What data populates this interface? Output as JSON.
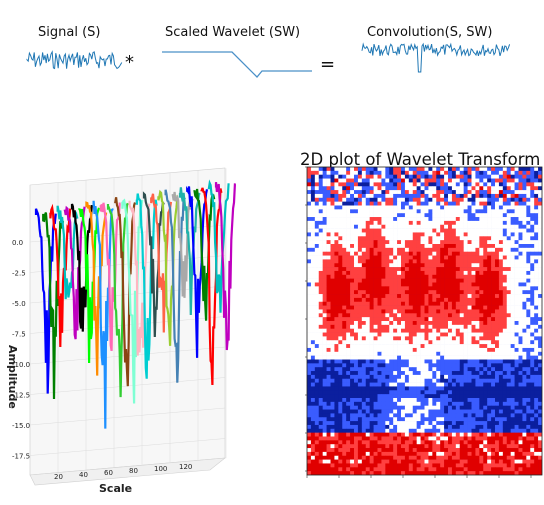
{
  "equation": {
    "signal_label": "Signal (S)",
    "wavelet_label": "Scaled Wavelet (SW)",
    "convolution_label": "Convolution(S, SW)",
    "op_multiply": "*",
    "op_equals": "="
  },
  "plot3d": {
    "ylabel": "Amplitude",
    "xlabel": "Scale",
    "y_ticks": [
      "0.0",
      "-2.5",
      "-5.0",
      "-7.5",
      "-10.0",
      "-12.5",
      "-15.0",
      "-17.5"
    ],
    "x_ticks": [
      "20",
      "40",
      "60",
      "80",
      "100",
      "120"
    ],
    "series_colors": [
      "#0000ff",
      "#008000",
      "#ff0000",
      "#00bfbf",
      "#bf00bf",
      "#000000",
      "#00ff00",
      "#ff8c00",
      "#1e90ff",
      "#ff69b4",
      "#32cd32",
      "#8b4513",
      "#7fffd4",
      "#ffb6c1",
      "#00ced1",
      "#2f4f4f",
      "#ff6347",
      "#9acd32",
      "#4682b4",
      "#a9a9a9",
      "#20b2aa"
    ]
  },
  "plot2d": {
    "title": "2D plot of Wavelet Transform",
    "colormap": [
      "#0b1f9e",
      "#3a5cff",
      "#ffffff",
      "#ff4040",
      "#e00000"
    ]
  },
  "colors": {
    "signal": "#1f77b4",
    "wavelet": "#4a90c8"
  }
}
